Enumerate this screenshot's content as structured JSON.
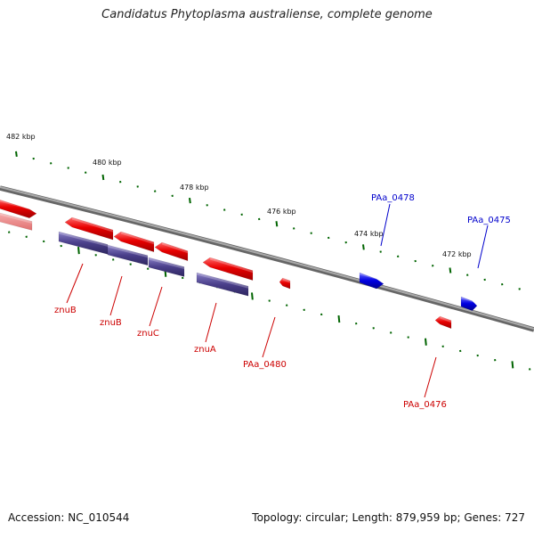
{
  "title": "Candidatus Phytoplasma australiense, complete genome",
  "footer": {
    "accession": "Accession: NC_010544",
    "topology": "Topology: circular; Length: 879,959 bp; Genes: 727"
  },
  "colors": {
    "gene_red": "#e00000",
    "gene_blue": "#0000e0",
    "feature_purple": "#4a3f8a",
    "tick_green": "#006400",
    "backbone": "#888888",
    "label_red": "#cc0000",
    "label_blue": "#0000cc"
  },
  "kbp_labels": [
    "482 kbp",
    "480 kbp",
    "478 kbp",
    "476 kbp",
    "474 kbp",
    "472 kbp"
  ],
  "gene_labels": [
    {
      "text": "znuB",
      "color": "red"
    },
    {
      "text": "znuB",
      "color": "red"
    },
    {
      "text": "znuC",
      "color": "red"
    },
    {
      "text": "znuA",
      "color": "red"
    },
    {
      "text": "PAa_0480",
      "color": "red"
    },
    {
      "text": "PAa_0476",
      "color": "red"
    },
    {
      "text": "PAa_0478",
      "color": "blue"
    },
    {
      "text": "PAa_0475",
      "color": "blue"
    }
  ]
}
